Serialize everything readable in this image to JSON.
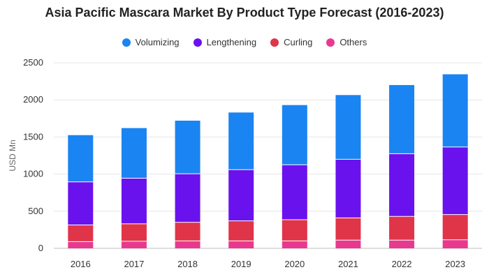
{
  "chart_data": {
    "type": "bar",
    "stacked": true,
    "title": "Asia Pacific Mascara Market By Product Type Forecast (2016-2023)",
    "xlabel": "",
    "ylabel": "USD Mn",
    "ylim": [
      0,
      2500
    ],
    "yticks": [
      "0",
      "500",
      "1000",
      "1500",
      "2000",
      "2500"
    ],
    "grid": true,
    "legend_position": "top-center",
    "categories": [
      "2016",
      "2017",
      "2018",
      "2019",
      "2020",
      "2021",
      "2022",
      "2023"
    ],
    "series": [
      {
        "name": "Others",
        "color": "#e8398f",
        "values": [
          90,
          95,
          100,
          100,
          100,
          110,
          110,
          115
        ]
      },
      {
        "name": "Curling",
        "color": "#e03448",
        "values": [
          225,
          235,
          250,
          270,
          285,
          300,
          320,
          340
        ]
      },
      {
        "name": "Lengthening",
        "color": "#6a12ee",
        "values": [
          580,
          615,
          655,
          690,
          740,
          790,
          845,
          910
        ]
      },
      {
        "name": "Volumizing",
        "color": "#1a84f2",
        "values": [
          630,
          675,
          715,
          770,
          805,
          865,
          925,
          980
        ]
      }
    ],
    "legend_order": [
      "Volumizing",
      "Lengthening",
      "Curling",
      "Others"
    ]
  }
}
